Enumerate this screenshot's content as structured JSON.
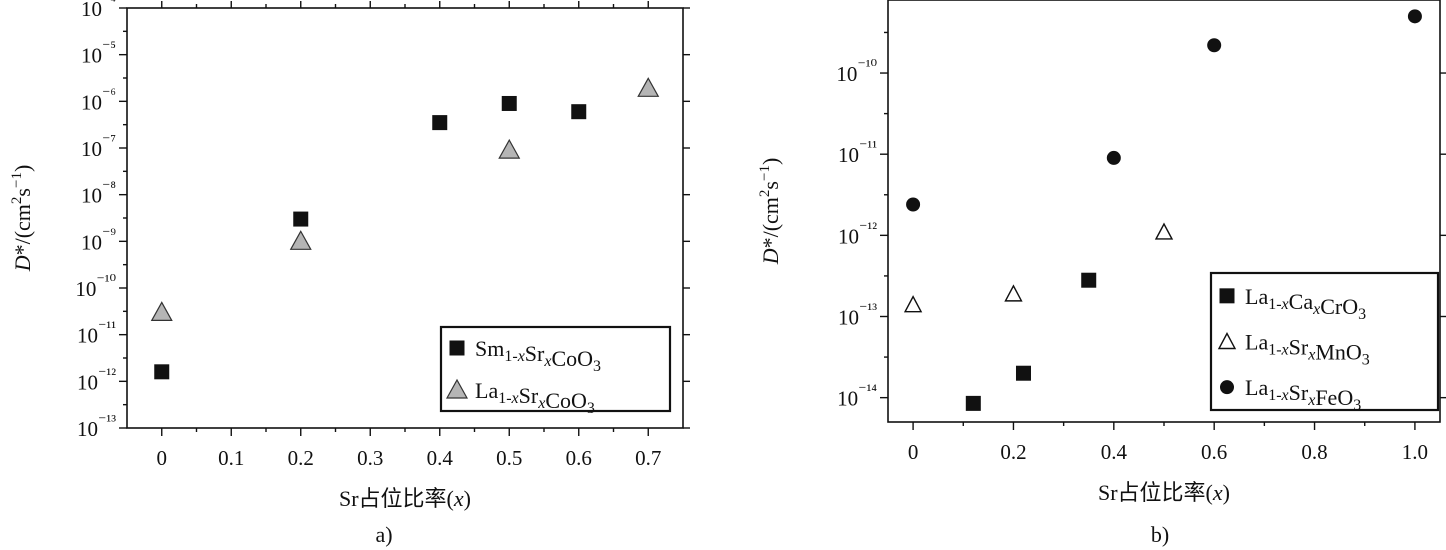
{
  "chart_data": [
    {
      "type": "scatter",
      "panel_label": "a)",
      "xlabel": "Sr占位比率(x)",
      "ylabel": "D*/(cm²s⁻¹)",
      "y_scale": "log",
      "xlim": [
        -0.05,
        0.75
      ],
      "ylim_exponent": [
        -13,
        -4
      ],
      "x_ticks": [
        0,
        0.1,
        0.2,
        0.3,
        0.4,
        0.5,
        0.6,
        0.7
      ],
      "x_tick_labels": [
        "0",
        "0.1",
        "0.2",
        "0.3",
        "0.4",
        "0.5",
        "0.6",
        "0.7"
      ],
      "y_tick_exponents": [
        -13,
        -12,
        -11,
        -10,
        -9,
        -8,
        -7,
        -6,
        -5,
        -4
      ],
      "y_tick_labels": [
        "10⁻¹³",
        "10⁻¹²",
        "10⁻¹¹",
        "10⁻¹⁰",
        "10⁻⁹",
        "10⁻⁸",
        "10⁻⁷",
        "10⁻⁶",
        "10⁻⁵",
        "10⁻⁴"
      ],
      "legend_position": "bottom-right",
      "series": [
        {
          "name": "Sm1-xSrxCoO3",
          "marker": "square",
          "color": "#111111",
          "points": [
            {
              "x": 0,
              "y": 1.6e-12
            },
            {
              "x": 0.2,
              "y": 3e-09
            },
            {
              "x": 0.4,
              "y": 3.5e-07
            },
            {
              "x": 0.5,
              "y": 9e-07
            },
            {
              "x": 0.6,
              "y": 6e-07
            }
          ]
        },
        {
          "name": "La1-xSrxCoO3",
          "marker": "triangle",
          "color": "#b5b5b5",
          "points": [
            {
              "x": 0,
              "y": 3e-11
            },
            {
              "x": 0.2,
              "y": 1e-09
            },
            {
              "x": 0.5,
              "y": 9e-08
            },
            {
              "x": 0.7,
              "y": 1.9e-06
            }
          ]
        }
      ]
    },
    {
      "type": "scatter",
      "panel_label": "b)",
      "xlabel": "Sr占位比率(x)",
      "ylabel": "D*/(cm²s⁻¹)",
      "y_scale": "log",
      "xlim": [
        -0.05,
        1.05
      ],
      "ylim_exponent": [
        -14.3,
        -9.1
      ],
      "x_ticks": [
        0,
        0.2,
        0.4,
        0.6,
        0.8,
        1.0
      ],
      "x_tick_labels": [
        "0",
        "0.2",
        "0.4",
        "0.6",
        "0.8",
        "1.0"
      ],
      "y_tick_exponents": [
        -14,
        -13,
        -12,
        -11,
        -10
      ],
      "y_tick_labels": [
        "10⁻¹⁴",
        "10⁻¹³",
        "10⁻¹²",
        "10⁻¹¹",
        "10⁻¹⁰"
      ],
      "legend_position": "bottom-right",
      "series": [
        {
          "name": "La1-xCaxCrO3",
          "marker": "square",
          "color": "#111111",
          "points": [
            {
              "x": 0.12,
              "y": 8.5e-15
            },
            {
              "x": 0.22,
              "y": 2e-14
            },
            {
              "x": 0.35,
              "y": 2.8e-13
            }
          ]
        },
        {
          "name": "La1-xSrxMnO3",
          "marker": "open-triangle",
          "color": "#111111",
          "points": [
            {
              "x": 0,
              "y": 1.4e-13
            },
            {
              "x": 0.2,
              "y": 1.9e-13
            },
            {
              "x": 0.5,
              "y": 1.1e-12
            }
          ]
        },
        {
          "name": "La1-xSrxFeO3",
          "marker": "circle",
          "color": "#111111",
          "points": [
            {
              "x": 0,
              "y": 2.4e-12
            },
            {
              "x": 0.4,
              "y": 9e-12
            },
            {
              "x": 0.6,
              "y": 2.2e-10
            },
            {
              "x": 1.0,
              "y": 5e-10
            }
          ]
        }
      ]
    }
  ]
}
